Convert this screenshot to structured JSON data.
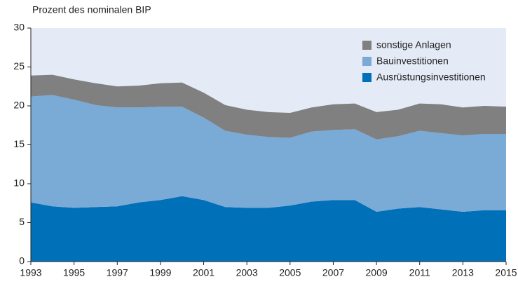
{
  "chart_data": {
    "type": "stacked_area",
    "ylabel": "Prozent des nominalen BIP",
    "x": [
      1993,
      1994,
      1995,
      1996,
      1997,
      1998,
      1999,
      2000,
      2001,
      2002,
      2003,
      2004,
      2005,
      2006,
      2007,
      2008,
      2009,
      2010,
      2011,
      2012,
      2013,
      2014,
      2015
    ],
    "series": [
      {
        "name": "Ausrüstungsinvestitionen",
        "color": "#0070b8",
        "values": [
          7.6,
          7.1,
          6.9,
          7.0,
          7.1,
          7.6,
          7.9,
          8.4,
          7.9,
          7.0,
          6.9,
          6.9,
          7.2,
          7.7,
          7.9,
          7.9,
          6.4,
          6.8,
          7.0,
          6.7,
          6.4,
          6.6,
          6.6
        ]
      },
      {
        "name": "Bauinvestitionen",
        "color": "#7aaad6",
        "values": [
          13.6,
          14.3,
          13.9,
          13.1,
          12.7,
          12.2,
          12.0,
          11.5,
          10.6,
          9.8,
          9.4,
          9.1,
          8.7,
          9.0,
          9.0,
          9.1,
          9.3,
          9.3,
          9.8,
          9.8,
          9.8,
          9.8,
          9.8
        ]
      },
      {
        "name": "sonstige Anlagen",
        "color": "#808080",
        "values": [
          2.7,
          2.6,
          2.6,
          2.8,
          2.7,
          2.8,
          3.0,
          3.1,
          3.2,
          3.3,
          3.2,
          3.2,
          3.2,
          3.1,
          3.3,
          3.3,
          3.5,
          3.4,
          3.5,
          3.7,
          3.6,
          3.6,
          3.5
        ]
      }
    ],
    "xlim": [
      1993,
      2015
    ],
    "xticks": [
      1993,
      1995,
      1997,
      1999,
      2001,
      2003,
      2005,
      2007,
      2009,
      2011,
      2013,
      2015
    ],
    "ylim": [
      0,
      30
    ],
    "yticks": [
      0,
      5,
      10,
      15,
      20,
      25,
      30
    ],
    "legend": "upper right",
    "background": "#e4eaf6"
  }
}
